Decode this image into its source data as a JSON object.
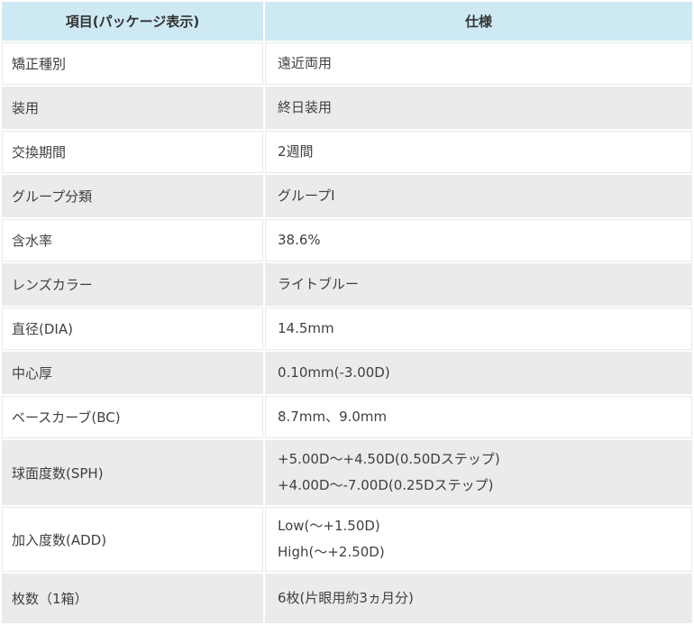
{
  "table": {
    "headers": [
      {
        "label": "項目(パッケージ表示)"
      },
      {
        "label": "仕様"
      }
    ],
    "rows": [
      {
        "item": "矯正種別",
        "spec": [
          "遠近両用"
        ]
      },
      {
        "item": "装用",
        "spec": [
          "終日装用"
        ]
      },
      {
        "item": "交換期間",
        "spec": [
          "2週間"
        ]
      },
      {
        "item": "グループ分類",
        "spec": [
          "グループI"
        ]
      },
      {
        "item": "含水率",
        "spec": [
          "38.6%"
        ]
      },
      {
        "item": "レンズカラー",
        "spec": [
          "ライトブルー"
        ]
      },
      {
        "item": "直径(DIA)",
        "spec": [
          "14.5mm"
        ]
      },
      {
        "item": "中心厚",
        "spec": [
          "0.10mm(-3.00D)"
        ]
      },
      {
        "item": "ベースカーブ(BC)",
        "spec": [
          "8.7mm、9.0mm"
        ]
      },
      {
        "item": "球面度数(SPH)",
        "spec": [
          "+5.00D～+4.50D(0.50Dステップ)",
          "+4.00D～-7.00D(0.25Dステップ)"
        ]
      },
      {
        "item": "加入度数(ADD)",
        "spec": [
          "Low(～+1.50D)",
          "High(～+2.50D)"
        ]
      },
      {
        "item": "枚数（1箱）",
        "spec": [
          "6枚(片眼用約3ヵ月分)"
        ]
      }
    ],
    "colors": {
      "header_bg": "#cde9f4",
      "row_bg": "#ffffff",
      "row_alt_bg": "#ebebeb",
      "divider_on_white": "#e9e9e9",
      "text": "#404040"
    }
  }
}
